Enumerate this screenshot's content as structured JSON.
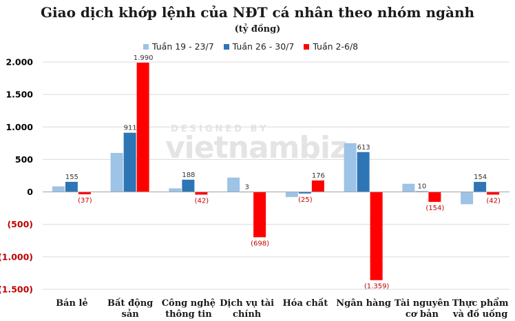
{
  "chart_data": {
    "type": "bar",
    "title": "Giao dịch khớp lệnh của NĐT cá nhân theo nhóm ngành",
    "subtitle": "(tỷ đồng)",
    "categories": [
      [
        "Bán lẻ"
      ],
      [
        "Bất động",
        "sản"
      ],
      [
        "Công nghệ",
        "thông tin"
      ],
      [
        "Dịch vụ tài",
        "chính"
      ],
      [
        "Hóa chất"
      ],
      [
        "Ngân hàng"
      ],
      [
        "Tài nguyên",
        "cơ bản"
      ],
      [
        "Thực phẩm",
        "và đồ uống"
      ]
    ],
    "series": [
      {
        "name": "Tuần 19 - 23/7",
        "color": "#9DC3E6",
        "values": [
          85,
          600,
          55,
          220,
          -80,
          750,
          125,
          -190
        ],
        "labels": [
          "",
          "",
          "",
          "",
          "",
          "",
          "",
          ""
        ]
      },
      {
        "name": "Tuần 26 - 30/7",
        "color": "#2E75B6",
        "values": [
          155,
          911,
          188,
          3,
          -25,
          613,
          10,
          154
        ],
        "labels": [
          "155",
          "911",
          "188",
          "3",
          "(25)",
          "613",
          "10",
          "154"
        ]
      },
      {
        "name": "Tuần 2-6/8",
        "color": "#FF0000",
        "values": [
          -37,
          1990,
          -42,
          -698,
          176,
          -1359,
          -154,
          -42
        ],
        "labels": [
          "(37)",
          "1.990",
          "(42)",
          "(698)",
          "176",
          "(1.359)",
          "(154)",
          "(42)"
        ]
      }
    ],
    "ylim": [
      -1500,
      2000
    ],
    "yticks": [
      {
        "value": 2000,
        "label": "2.000"
      },
      {
        "value": 1500,
        "label": "1.500"
      },
      {
        "value": 1000,
        "label": "1.000"
      },
      {
        "value": 500,
        "label": "500"
      },
      {
        "value": 0,
        "label": "0"
      },
      {
        "value": -500,
        "label": "(500)"
      },
      {
        "value": -1000,
        "label": "(1.000)"
      },
      {
        "value": -1500,
        "label": "(1.500)"
      }
    ],
    "grid": true,
    "legend_position": "top"
  },
  "watermark": {
    "top": "DESIGNED BY",
    "main": "vietnambiz"
  },
  "colors": {
    "positive_tick": "#000000",
    "negative_tick": "#C00000",
    "negative_label": "#C00000",
    "grid": "#D9D9D9"
  }
}
